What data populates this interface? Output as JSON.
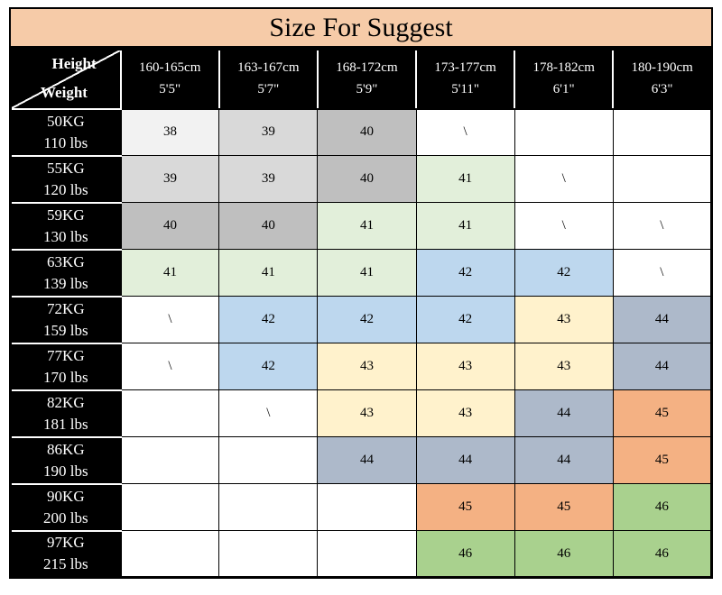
{
  "title": "Size For Suggest",
  "corner": {
    "top": "Height",
    "bottom": "Weight"
  },
  "palette": {
    "white": "#FFFFFF",
    "g0": "#F2F2F2",
    "g1": "#D9D9D9",
    "g2": "#BFBFBF",
    "lgreen": "#E2EFDA",
    "lblue": "#BDD7EE",
    "lyellow": "#FFF2CC",
    "bluegray": "#ADB9CA",
    "orange": "#F4B183",
    "green": "#A9D18E",
    "peach": "#F6CBA8",
    "black": "#000000"
  },
  "chart_data": {
    "type": "table",
    "title": "Size For Suggest",
    "columns": [
      {
        "cm": "160-165cm",
        "ft": "5'5\""
      },
      {
        "cm": "163-167cm",
        "ft": "5'7\""
      },
      {
        "cm": "168-172cm",
        "ft": "5'9\""
      },
      {
        "cm": "173-177cm",
        "ft": "5'11\""
      },
      {
        "cm": "178-182cm",
        "ft": "6'1\""
      },
      {
        "cm": "180-190cm",
        "ft": "6'3\""
      }
    ],
    "rows": [
      {
        "kg": "50KG",
        "lbs": "110 lbs",
        "cells": [
          {
            "v": "38",
            "c": "g0"
          },
          {
            "v": "39",
            "c": "g1"
          },
          {
            "v": "40",
            "c": "g2"
          },
          {
            "v": "\\",
            "c": "white"
          },
          {
            "v": "",
            "c": "white"
          },
          {
            "v": "",
            "c": "white"
          }
        ]
      },
      {
        "kg": "55KG",
        "lbs": "120 lbs",
        "cells": [
          {
            "v": "39",
            "c": "g1"
          },
          {
            "v": "39",
            "c": "g1"
          },
          {
            "v": "40",
            "c": "g2"
          },
          {
            "v": "41",
            "c": "lgreen"
          },
          {
            "v": "\\",
            "c": "white"
          },
          {
            "v": "",
            "c": "white"
          }
        ]
      },
      {
        "kg": "59KG",
        "lbs": "130 lbs",
        "cells": [
          {
            "v": "40",
            "c": "g2"
          },
          {
            "v": "40",
            "c": "g2"
          },
          {
            "v": "41",
            "c": "lgreen"
          },
          {
            "v": "41",
            "c": "lgreen"
          },
          {
            "v": "\\",
            "c": "white"
          },
          {
            "v": "\\",
            "c": "white"
          }
        ]
      },
      {
        "kg": "63KG",
        "lbs": "139 lbs",
        "cells": [
          {
            "v": "41",
            "c": "lgreen"
          },
          {
            "v": "41",
            "c": "lgreen"
          },
          {
            "v": "41",
            "c": "lgreen"
          },
          {
            "v": "42",
            "c": "lblue"
          },
          {
            "v": "42",
            "c": "lblue"
          },
          {
            "v": "\\",
            "c": "white"
          }
        ]
      },
      {
        "kg": "72KG",
        "lbs": "159 lbs",
        "cells": [
          {
            "v": "\\",
            "c": "white"
          },
          {
            "v": "42",
            "c": "lblue"
          },
          {
            "v": "42",
            "c": "lblue"
          },
          {
            "v": "42",
            "c": "lblue"
          },
          {
            "v": "43",
            "c": "lyellow"
          },
          {
            "v": "44",
            "c": "bluegray"
          }
        ]
      },
      {
        "kg": "77KG",
        "lbs": "170 lbs",
        "cells": [
          {
            "v": "\\",
            "c": "white"
          },
          {
            "v": "42",
            "c": "lblue"
          },
          {
            "v": "43",
            "c": "lyellow"
          },
          {
            "v": "43",
            "c": "lyellow"
          },
          {
            "v": "43",
            "c": "lyellow"
          },
          {
            "v": "44",
            "c": "bluegray"
          }
        ]
      },
      {
        "kg": "82KG",
        "lbs": "181 lbs",
        "cells": [
          {
            "v": "",
            "c": "white"
          },
          {
            "v": "\\",
            "c": "white"
          },
          {
            "v": "43",
            "c": "lyellow"
          },
          {
            "v": "43",
            "c": "lyellow"
          },
          {
            "v": "44",
            "c": "bluegray"
          },
          {
            "v": "45",
            "c": "orange"
          }
        ]
      },
      {
        "kg": "86KG",
        "lbs": "190 lbs",
        "cells": [
          {
            "v": "",
            "c": "white"
          },
          {
            "v": "",
            "c": "white"
          },
          {
            "v": "44",
            "c": "bluegray"
          },
          {
            "v": "44",
            "c": "bluegray"
          },
          {
            "v": "44",
            "c": "bluegray"
          },
          {
            "v": "45",
            "c": "orange"
          }
        ]
      },
      {
        "kg": "90KG",
        "lbs": "200 lbs",
        "cells": [
          {
            "v": "",
            "c": "white"
          },
          {
            "v": "",
            "c": "white"
          },
          {
            "v": "",
            "c": "white"
          },
          {
            "v": "45",
            "c": "orange"
          },
          {
            "v": "45",
            "c": "orange"
          },
          {
            "v": "46",
            "c": "green"
          }
        ]
      },
      {
        "kg": "97KG",
        "lbs": "215 lbs",
        "cells": [
          {
            "v": "",
            "c": "white"
          },
          {
            "v": "",
            "c": "white"
          },
          {
            "v": "",
            "c": "white"
          },
          {
            "v": "46",
            "c": "green"
          },
          {
            "v": "46",
            "c": "green"
          },
          {
            "v": "46",
            "c": "green"
          }
        ]
      }
    ]
  }
}
